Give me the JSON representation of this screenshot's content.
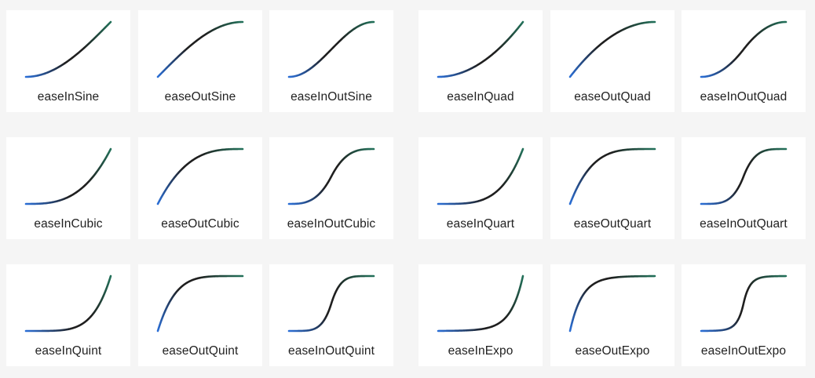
{
  "colors": {
    "background": "#f5f5f5",
    "card": "#ffffff",
    "label": "#222222",
    "curve_start": "#2b6fd6",
    "curve_mid": "#1f1f1f",
    "curve_end": "#23715a"
  },
  "easings": [
    {
      "name": "easeInSine",
      "fn": "easeInSine"
    },
    {
      "name": "easeOutSine",
      "fn": "easeOutSine"
    },
    {
      "name": "easeInOutSine",
      "fn": "easeInOutSine"
    },
    {
      "name": "easeInQuad",
      "fn": "easeInQuad"
    },
    {
      "name": "easeOutQuad",
      "fn": "easeOutQuad"
    },
    {
      "name": "easeInOutQuad",
      "fn": "easeInOutQuad"
    },
    {
      "name": "easeInCubic",
      "fn": "easeInCubic"
    },
    {
      "name": "easeOutCubic",
      "fn": "easeOutCubic"
    },
    {
      "name": "easeInOutCubic",
      "fn": "easeInOutCubic"
    },
    {
      "name": "easeInQuart",
      "fn": "easeInQuart"
    },
    {
      "name": "easeOutQuart",
      "fn": "easeOutQuart"
    },
    {
      "name": "easeInOutQuart",
      "fn": "easeInOutQuart"
    },
    {
      "name": "easeInQuint",
      "fn": "easeInQuint"
    },
    {
      "name": "easeOutQuint",
      "fn": "easeOutQuint"
    },
    {
      "name": "easeInOutQuint",
      "fn": "easeInOutQuint"
    },
    {
      "name": "easeInExpo",
      "fn": "easeInExpo"
    },
    {
      "name": "easeOutExpo",
      "fn": "easeOutExpo"
    },
    {
      "name": "easeInOutExpo",
      "fn": "easeInOutExpo"
    }
  ]
}
